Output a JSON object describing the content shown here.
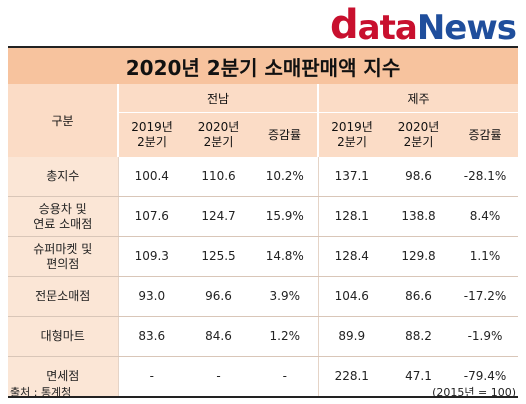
{
  "logo": {
    "d": "d",
    "ata": "ata",
    "n": "N",
    "ews": "ews"
  },
  "title": "2020년 2분기 소매판매액 지수",
  "header": {
    "category": "구분",
    "regions": [
      "전남",
      "제주"
    ],
    "subcols": [
      "2019년\n2분기",
      "2020년\n2분기",
      "증감률",
      "2019년\n2분기",
      "2020년\n2분기",
      "증감률"
    ]
  },
  "rows": [
    {
      "label": "총지수",
      "values": [
        "100.4",
        "110.6",
        "10.2%",
        "137.1",
        "98.6",
        "-28.1%"
      ]
    },
    {
      "label": "승용차 및\n연료 소매점",
      "values": [
        "107.6",
        "124.7",
        "15.9%",
        "128.1",
        "138.8",
        "8.4%"
      ]
    },
    {
      "label": "슈퍼마켓 및\n편의점",
      "values": [
        "109.3",
        "125.5",
        "14.8%",
        "128.4",
        "129.8",
        "1.1%"
      ]
    },
    {
      "label": "전문소매점",
      "values": [
        "93.0",
        "96.6",
        "3.9%",
        "104.6",
        "86.6",
        "-17.2%"
      ]
    },
    {
      "label": "대형마트",
      "values": [
        "83.6",
        "84.6",
        "1.2%",
        "89.9",
        "88.2",
        "-1.9%"
      ]
    },
    {
      "label": "면세점",
      "values": [
        "-",
        "-",
        "-",
        "228.1",
        "47.1",
        "-79.4%"
      ]
    }
  ],
  "footer": {
    "source": "출처 : 통계청",
    "base": "(2015년 = 100)"
  }
}
